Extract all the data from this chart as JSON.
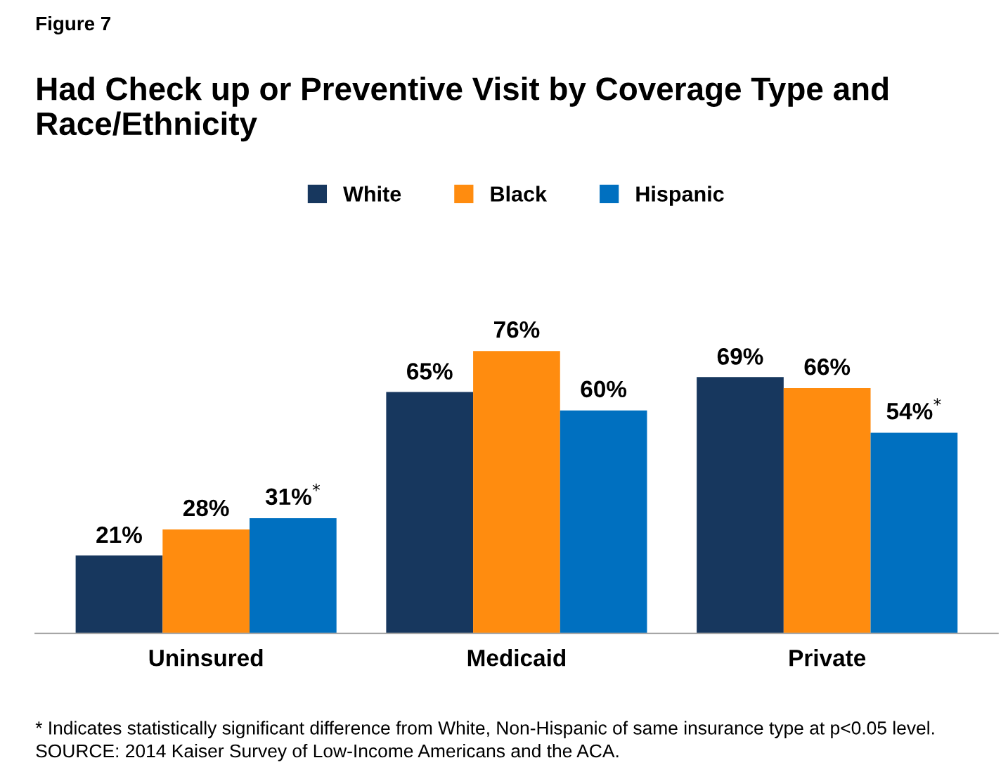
{
  "chart_data": {
    "type": "bar",
    "title": "Had Check up or Preventive Visit by Coverage Type and Race/Ethnicity",
    "categories": [
      "Uninsured",
      "Medicaid",
      "Private"
    ],
    "series": [
      {
        "name": "White",
        "color": "#17375e",
        "values": [
          21,
          65,
          69
        ],
        "value_labels": [
          "21%",
          "65%",
          "69%"
        ]
      },
      {
        "name": "Black",
        "color": "#ff8c0f",
        "values": [
          28,
          76,
          66
        ],
        "value_labels": [
          "28%",
          "76%",
          "66%"
        ]
      },
      {
        "name": "Hispanic",
        "color": "#0070c0",
        "values": [
          31,
          60,
          54
        ],
        "value_labels": [
          "31%$^{*}$",
          "60%",
          "54%$^{*}$"
        ]
      }
    ],
    "legend": "top",
    "grid": false,
    "annotations": [
      "Figure 7",
      "* Indicates statistically significant difference from White, Non-Hispanic of same insurance type at p<0.05 level.",
      "SOURCE: 2014 Kaiser Survey of Low-Income Americans and the ACA."
    ]
  }
}
